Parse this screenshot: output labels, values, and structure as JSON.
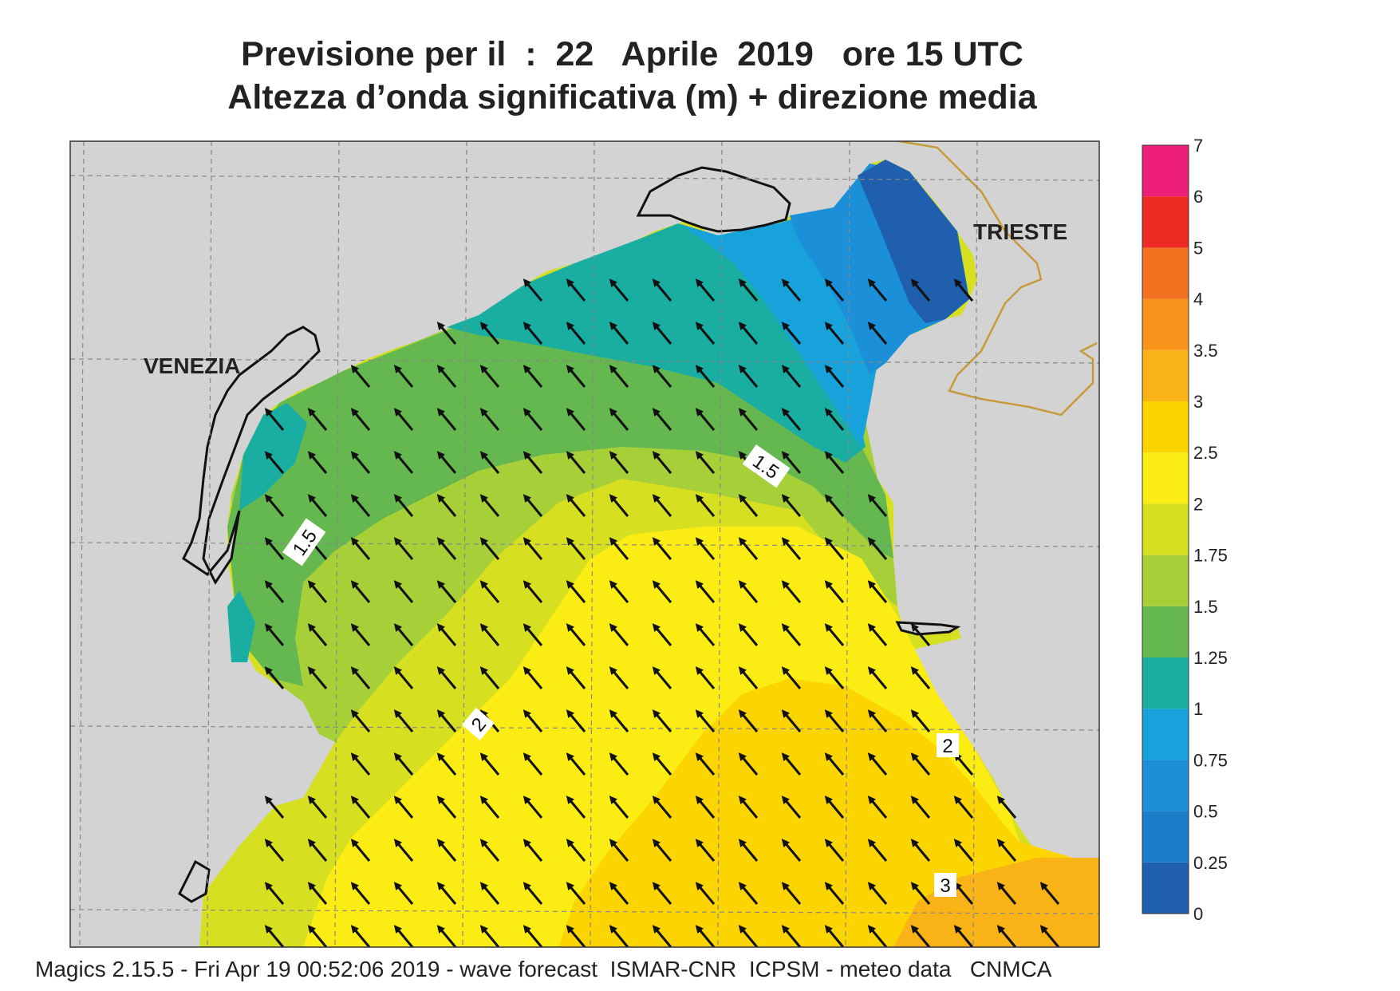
{
  "header": {
    "title_line1": "Previsione per il  :  22   Aprile  2019   ore 15 UTC",
    "title_line2": "Altezza d’onda significativa (m) + direzione media"
  },
  "map": {
    "places": [
      "VENEZIA",
      "TRIESTE"
    ],
    "contour_labels": [
      "1.5",
      "1.5",
      "2",
      "2",
      "3"
    ],
    "arrow_direction": "towards north-west",
    "colors": {
      "land": "#d3d3d3",
      "coast": "#111111",
      "border": "#c79a3a",
      "graticule": "#888888"
    }
  },
  "legend": {
    "title": "",
    "ticks": [
      "7",
      "6",
      "5",
      "4",
      "3.5",
      "3",
      "2.5",
      "2",
      "1.75",
      "1.5",
      "1.25",
      "1",
      "0.75",
      "0.5",
      "0.25",
      "0"
    ],
    "colors_bottom_to_top": [
      "#1f5fad",
      "#1a7ec9",
      "#1c8fd9",
      "#17a2dc",
      "#1aaea2",
      "#65b84f",
      "#a6cf38",
      "#d6df20",
      "#fbec14",
      "#fcd500",
      "#fab317",
      "#f8941c",
      "#f47021",
      "#ee2a24",
      "#ec1e79"
    ]
  },
  "footer": {
    "text": "Magics 2.15.5 - Fri Apr 19 00:52:06 2019 - wave forecast  ISMAR-CNR  ICPSM - meteo data   CNMCA"
  }
}
